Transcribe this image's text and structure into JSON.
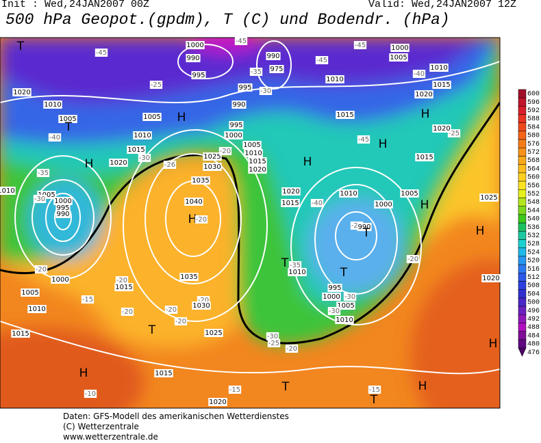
{
  "header": {
    "init": "Init : Wed,24JAN2007 00Z",
    "valid": "Valid: Wed,24JAN2007 12Z",
    "title": "500 hPa Geopot.(gpdm), T (C) und Bodendr. (hPa)"
  },
  "colorbar": {
    "ticks": [
      600,
      596,
      592,
      588,
      584,
      580,
      576,
      572,
      568,
      564,
      560,
      556,
      552,
      548,
      544,
      540,
      536,
      532,
      528,
      524,
      520,
      516,
      512,
      508,
      504,
      500,
      496,
      492,
      488,
      484,
      480,
      476
    ],
    "colors": [
      "#a0102a",
      "#c0142c",
      "#d81e2a",
      "#e83222",
      "#f04a1c",
      "#f46418",
      "#f67c18",
      "#f8921a",
      "#fa a81c",
      "#fcbc1e",
      "#fcd020",
      "#fce424",
      "#e6f01c",
      "#b4e61c",
      "#7cd81c",
      "#3cc81c",
      "#1cc060",
      "#1cc8a0",
      "#1cd0d0",
      "#20b8e8",
      "#2898f0",
      "#2c78f0",
      "#2c58e8",
      "#2c40e0",
      "#3030d0",
      "#4828c8",
      "#6c20c0",
      "#9018b8",
      "#b010c0",
      "#800c98",
      "#600880",
      "#4c0464"
    ]
  },
  "map": {
    "labels": [
      "T",
      "-45",
      "1000",
      "990",
      "995",
      "-45",
      "990",
      "975",
      "-35",
      "995",
      "-30",
      "-25",
      "1020",
      "1010",
      "1005",
      "T",
      "-40",
      "1005",
      "H",
      "1010",
      "1015",
      "-30",
      "1020",
      "H",
      "-26",
      "1025",
      "1030",
      "-20",
      "990",
      "995",
      "1000",
      "1005",
      "1010",
      "1015",
      "1020",
      "H",
      "-45",
      "H",
      "1015",
      "-25",
      "1020",
      "H",
      "1015",
      "1010",
      "-45",
      "-45",
      "1000",
      "1005",
      "1010",
      "-40",
      "1015",
      "1020",
      "1035",
      "1040",
      "H",
      "-20",
      "1035",
      "1005",
      "-30",
      "-35",
      "1010",
      "1000",
      "995",
      "990",
      "-20",
      "1000",
      "1005",
      "1010",
      "1015",
      "-15",
      "-20",
      "1015",
      "-20",
      "-20",
      "T",
      "-20",
      "-20",
      "1030",
      "1025",
      "1015",
      "H",
      "-10",
      "1020",
      "-15",
      "T",
      "T",
      "-15",
      "H",
      "-30",
      "-25",
      "-20",
      "1020",
      "1015",
      "-40",
      "1010",
      "1005",
      "1000",
      "-25",
      "990",
      "T",
      "T",
      "-35",
      "1010",
      "T",
      "995",
      "1000",
      "-30",
      "1005",
      "-30",
      "1010",
      "-20",
      "H",
      "1020",
      "1025",
      "H",
      "H"
    ]
  },
  "footer": [
    "Daten: GFS-Modell des amerikanischen Wetterdienstes",
    "(C) Wetterzentrale",
    "www.wetterzentrale.de"
  ]
}
